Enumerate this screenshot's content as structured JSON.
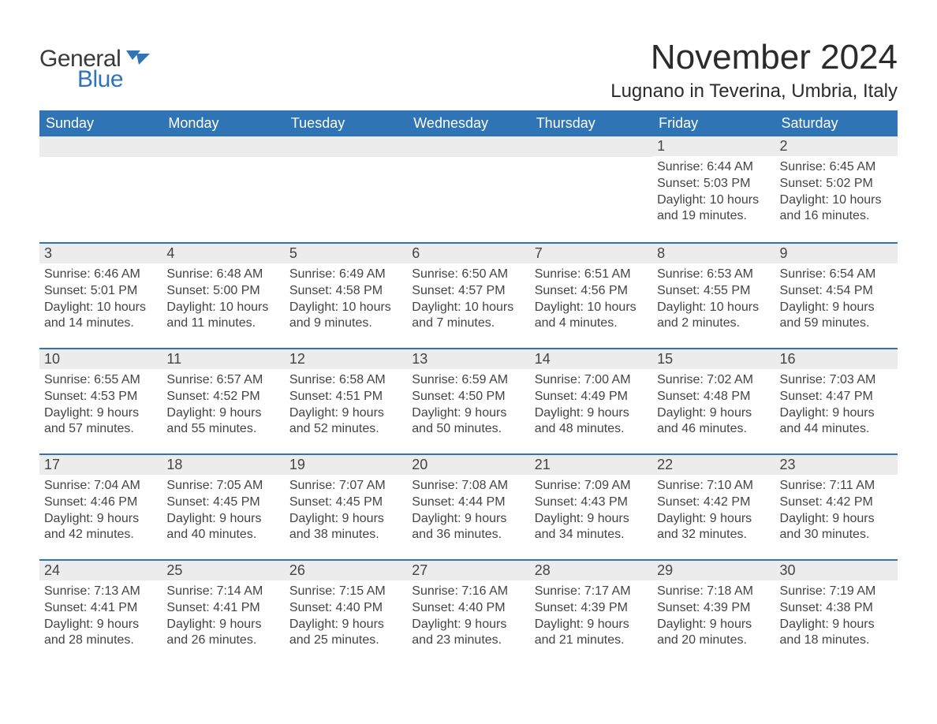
{
  "branding": {
    "logo_part1": "General",
    "logo_part2": "Blue",
    "logo_flag_color": "#2f74b5"
  },
  "header": {
    "month_title": "November 2024",
    "location": "Lugnano in Teverina, Umbria, Italy"
  },
  "style": {
    "header_bg": "#2f74b5",
    "header_text": "#ffffff",
    "daynum_bg": "#ececec",
    "border_top": "#2f74b5",
    "body_text": "#444444",
    "page_bg": "#ffffff"
  },
  "weekday_labels": [
    "Sunday",
    "Monday",
    "Tuesday",
    "Wednesday",
    "Thursday",
    "Friday",
    "Saturday"
  ],
  "labels": {
    "sunrise": "Sunrise:",
    "sunset": "Sunset:",
    "daylight": "Daylight:"
  },
  "weeks": [
    [
      null,
      null,
      null,
      null,
      null,
      {
        "n": "1",
        "sunrise": "6:44 AM",
        "sunset": "5:03 PM",
        "daylight": "10 hours and 19 minutes."
      },
      {
        "n": "2",
        "sunrise": "6:45 AM",
        "sunset": "5:02 PM",
        "daylight": "10 hours and 16 minutes."
      }
    ],
    [
      {
        "n": "3",
        "sunrise": "6:46 AM",
        "sunset": "5:01 PM",
        "daylight": "10 hours and 14 minutes."
      },
      {
        "n": "4",
        "sunrise": "6:48 AM",
        "sunset": "5:00 PM",
        "daylight": "10 hours and 11 minutes."
      },
      {
        "n": "5",
        "sunrise": "6:49 AM",
        "sunset": "4:58 PM",
        "daylight": "10 hours and 9 minutes."
      },
      {
        "n": "6",
        "sunrise": "6:50 AM",
        "sunset": "4:57 PM",
        "daylight": "10 hours and 7 minutes."
      },
      {
        "n": "7",
        "sunrise": "6:51 AM",
        "sunset": "4:56 PM",
        "daylight": "10 hours and 4 minutes."
      },
      {
        "n": "8",
        "sunrise": "6:53 AM",
        "sunset": "4:55 PM",
        "daylight": "10 hours and 2 minutes."
      },
      {
        "n": "9",
        "sunrise": "6:54 AM",
        "sunset": "4:54 PM",
        "daylight": "9 hours and 59 minutes."
      }
    ],
    [
      {
        "n": "10",
        "sunrise": "6:55 AM",
        "sunset": "4:53 PM",
        "daylight": "9 hours and 57 minutes."
      },
      {
        "n": "11",
        "sunrise": "6:57 AM",
        "sunset": "4:52 PM",
        "daylight": "9 hours and 55 minutes."
      },
      {
        "n": "12",
        "sunrise": "6:58 AM",
        "sunset": "4:51 PM",
        "daylight": "9 hours and 52 minutes."
      },
      {
        "n": "13",
        "sunrise": "6:59 AM",
        "sunset": "4:50 PM",
        "daylight": "9 hours and 50 minutes."
      },
      {
        "n": "14",
        "sunrise": "7:00 AM",
        "sunset": "4:49 PM",
        "daylight": "9 hours and 48 minutes."
      },
      {
        "n": "15",
        "sunrise": "7:02 AM",
        "sunset": "4:48 PM",
        "daylight": "9 hours and 46 minutes."
      },
      {
        "n": "16",
        "sunrise": "7:03 AM",
        "sunset": "4:47 PM",
        "daylight": "9 hours and 44 minutes."
      }
    ],
    [
      {
        "n": "17",
        "sunrise": "7:04 AM",
        "sunset": "4:46 PM",
        "daylight": "9 hours and 42 minutes."
      },
      {
        "n": "18",
        "sunrise": "7:05 AM",
        "sunset": "4:45 PM",
        "daylight": "9 hours and 40 minutes."
      },
      {
        "n": "19",
        "sunrise": "7:07 AM",
        "sunset": "4:45 PM",
        "daylight": "9 hours and 38 minutes."
      },
      {
        "n": "20",
        "sunrise": "7:08 AM",
        "sunset": "4:44 PM",
        "daylight": "9 hours and 36 minutes."
      },
      {
        "n": "21",
        "sunrise": "7:09 AM",
        "sunset": "4:43 PM",
        "daylight": "9 hours and 34 minutes."
      },
      {
        "n": "22",
        "sunrise": "7:10 AM",
        "sunset": "4:42 PM",
        "daylight": "9 hours and 32 minutes."
      },
      {
        "n": "23",
        "sunrise": "7:11 AM",
        "sunset": "4:42 PM",
        "daylight": "9 hours and 30 minutes."
      }
    ],
    [
      {
        "n": "24",
        "sunrise": "7:13 AM",
        "sunset": "4:41 PM",
        "daylight": "9 hours and 28 minutes."
      },
      {
        "n": "25",
        "sunrise": "7:14 AM",
        "sunset": "4:41 PM",
        "daylight": "9 hours and 26 minutes."
      },
      {
        "n": "26",
        "sunrise": "7:15 AM",
        "sunset": "4:40 PM",
        "daylight": "9 hours and 25 minutes."
      },
      {
        "n": "27",
        "sunrise": "7:16 AM",
        "sunset": "4:40 PM",
        "daylight": "9 hours and 23 minutes."
      },
      {
        "n": "28",
        "sunrise": "7:17 AM",
        "sunset": "4:39 PM",
        "daylight": "9 hours and 21 minutes."
      },
      {
        "n": "29",
        "sunrise": "7:18 AM",
        "sunset": "4:39 PM",
        "daylight": "9 hours and 20 minutes."
      },
      {
        "n": "30",
        "sunrise": "7:19 AM",
        "sunset": "4:38 PM",
        "daylight": "9 hours and 18 minutes."
      }
    ]
  ]
}
